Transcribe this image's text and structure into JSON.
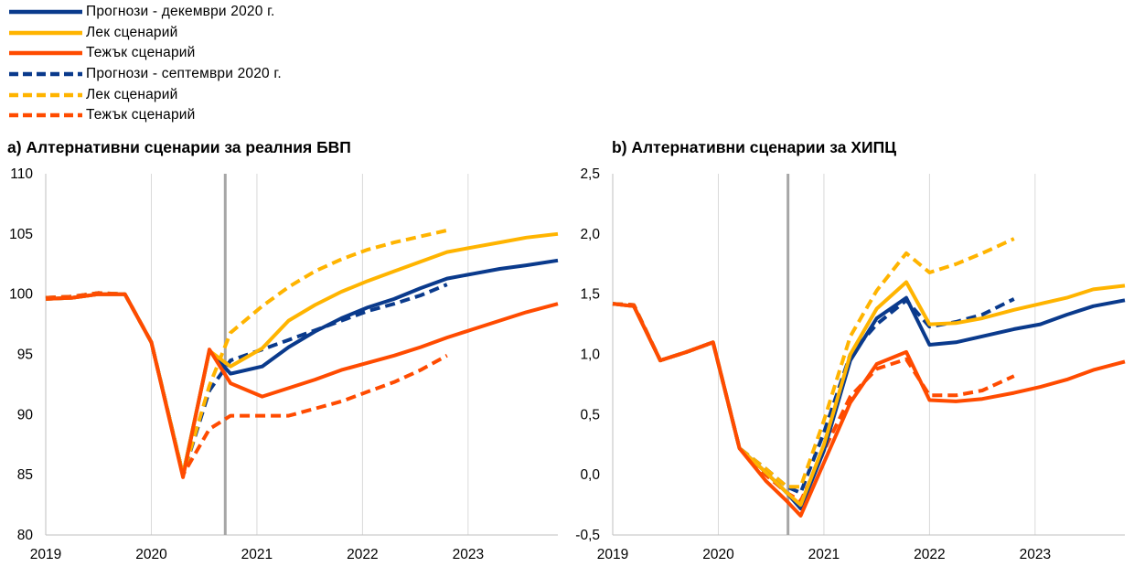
{
  "legend": [
    {
      "label": "Прогнози - декември 2020 г.",
      "color": "#0a3a8c",
      "dashed": false
    },
    {
      "label": "Лек сценарий",
      "color": "#ffb400",
      "dashed": false
    },
    {
      "label": "Тежък сценарий",
      "color": "#ff4b00",
      "dashed": false
    },
    {
      "label": "Прогнози - септември 2020 г.",
      "color": "#0a3a8c",
      "dashed": true
    },
    {
      "label": "Лек сценарий",
      "color": "#ffb400",
      "dashed": true
    },
    {
      "label": "Тежък сценарий",
      "color": "#ff4b00",
      "dashed": true
    }
  ],
  "chart_data": [
    {
      "type": "line",
      "title": "a) Алтернативни сценарии за реалния БВП",
      "xlabel": "",
      "ylabel": "",
      "xlim": [
        2019.0,
        2023.85
      ],
      "ylim": [
        80,
        110
      ],
      "y_ticks": [
        "80",
        "85",
        "90",
        "95",
        "100",
        "105",
        "110"
      ],
      "x_ticks": [
        {
          "value": 2019.0,
          "label": "2019"
        },
        {
          "value": 2020.0,
          "label": "2020"
        },
        {
          "value": 2021.0,
          "label": "2021"
        },
        {
          "value": 2022.0,
          "label": "2022"
        },
        {
          "value": 2023.0,
          "label": "2023"
        }
      ],
      "marker_line": 2020.7,
      "grid": "vertical",
      "series": [
        {
          "name": "Прогнози - декември 2020 г.",
          "color": "#0a3a8c",
          "dashed": false,
          "x": [
            2019.0,
            2019.25,
            2019.5,
            2019.75,
            2020.0,
            2020.3,
            2020.55,
            2020.75,
            2021.05,
            2021.3,
            2021.55,
            2021.8,
            2022.05,
            2022.3,
            2022.55,
            2022.8,
            2023.05,
            2023.3,
            2023.55,
            2023.85
          ],
          "y": [
            99.6,
            99.7,
            100.0,
            100.0,
            96.0,
            85.0,
            95.3,
            93.4,
            94.0,
            95.6,
            96.9,
            98.0,
            98.9,
            99.6,
            100.5,
            101.3,
            101.7,
            102.1,
            102.4,
            102.8
          ]
        },
        {
          "name": "Лек сценарий",
          "color": "#ffb400",
          "dashed": false,
          "x": [
            2019.0,
            2019.25,
            2019.5,
            2019.75,
            2020.0,
            2020.3,
            2020.55,
            2020.75,
            2021.05,
            2021.3,
            2021.55,
            2021.8,
            2022.05,
            2022.3,
            2022.55,
            2022.8,
            2023.05,
            2023.3,
            2023.55,
            2023.85
          ],
          "y": [
            99.6,
            99.7,
            100.0,
            100.0,
            96.0,
            85.0,
            95.3,
            94.0,
            95.5,
            97.8,
            99.1,
            100.2,
            101.1,
            101.9,
            102.7,
            103.5,
            103.9,
            104.3,
            104.7,
            105.0
          ]
        },
        {
          "name": "Тежък сценарий",
          "color": "#ff4b00",
          "dashed": false,
          "x": [
            2019.0,
            2019.25,
            2019.5,
            2019.75,
            2020.0,
            2020.3,
            2020.55,
            2020.75,
            2021.05,
            2021.3,
            2021.55,
            2021.8,
            2022.05,
            2022.3,
            2022.55,
            2022.8,
            2023.05,
            2023.3,
            2023.55,
            2023.85
          ],
          "y": [
            99.6,
            99.7,
            100.0,
            100.0,
            96.0,
            84.8,
            95.4,
            92.6,
            91.5,
            92.2,
            92.9,
            93.7,
            94.3,
            94.9,
            95.6,
            96.4,
            97.1,
            97.8,
            98.5,
            99.2
          ]
        },
        {
          "name": "Прогнози - септември 2020 г.",
          "color": "#0a3a8c",
          "dashed": true,
          "x": [
            2019.0,
            2019.25,
            2019.5,
            2019.75,
            2020.0,
            2020.3,
            2020.55,
            2020.75,
            2021.05,
            2021.3,
            2021.55,
            2021.8,
            2022.05,
            2022.3,
            2022.55,
            2022.8
          ],
          "y": [
            99.7,
            99.8,
            100.1,
            100.0,
            96.0,
            85.0,
            92.0,
            94.5,
            95.4,
            96.2,
            97.0,
            97.8,
            98.6,
            99.2,
            99.9,
            100.8
          ]
        },
        {
          "name": "Лек сценарий",
          "color": "#ffb400",
          "dashed": true,
          "x": [
            2019.0,
            2019.25,
            2019.5,
            2019.75,
            2020.0,
            2020.3,
            2020.55,
            2020.75,
            2021.05,
            2021.3,
            2021.55,
            2021.8,
            2022.05,
            2022.3,
            2022.55,
            2022.8
          ],
          "y": [
            99.7,
            99.8,
            100.1,
            100.0,
            96.0,
            85.0,
            92.4,
            96.8,
            99.0,
            100.6,
            101.9,
            102.9,
            103.7,
            104.3,
            104.8,
            105.3
          ]
        },
        {
          "name": "Тежък сценарий",
          "color": "#ff4b00",
          "dashed": true,
          "x": [
            2019.0,
            2019.25,
            2019.5,
            2019.75,
            2020.0,
            2020.3,
            2020.55,
            2020.75,
            2021.05,
            2021.3,
            2021.55,
            2021.8,
            2022.05,
            2022.3,
            2022.55,
            2022.8
          ],
          "y": [
            99.7,
            99.8,
            100.1,
            100.0,
            96.0,
            85.0,
            88.8,
            89.9,
            89.9,
            89.9,
            90.5,
            91.1,
            91.9,
            92.7,
            93.7,
            94.9
          ]
        }
      ]
    },
    {
      "type": "line",
      "title": "b) Алтернативни сценарии за ХИПЦ",
      "xlabel": "",
      "ylabel": "",
      "xlim": [
        2019.0,
        2023.85
      ],
      "ylim": [
        -0.5,
        2.5
      ],
      "y_ticks": [
        "-0,5",
        "0,0",
        "0,5",
        "1,0",
        "1,5",
        "2,0",
        "2,5"
      ],
      "x_ticks": [
        {
          "value": 2019.0,
          "label": "2019"
        },
        {
          "value": 2020.0,
          "label": "2020"
        },
        {
          "value": 2021.0,
          "label": "2021"
        },
        {
          "value": 2022.0,
          "label": "2022"
        },
        {
          "value": 2023.0,
          "label": "2023"
        }
      ],
      "marker_line": 2020.66,
      "grid": "vertical",
      "series": [
        {
          "name": "Прогнози - декември 2020 г.",
          "color": "#0a3a8c",
          "dashed": false,
          "x": [
            2019.0,
            2019.2,
            2019.45,
            2019.7,
            2019.95,
            2020.2,
            2020.45,
            2020.65,
            2020.78,
            2021.0,
            2021.25,
            2021.5,
            2021.78,
            2022.0,
            2022.25,
            2022.5,
            2022.8,
            2023.05,
            2023.3,
            2023.55,
            2023.85
          ],
          "y": [
            1.42,
            1.4,
            0.95,
            1.02,
            1.1,
            0.22,
            0.02,
            -0.15,
            -0.28,
            0.2,
            0.95,
            1.3,
            1.47,
            1.08,
            1.1,
            1.15,
            1.21,
            1.25,
            1.33,
            1.4,
            1.45
          ]
        },
        {
          "name": "Лек сценарий",
          "color": "#ffb400",
          "dashed": false,
          "x": [
            2019.0,
            2019.2,
            2019.45,
            2019.7,
            2019.95,
            2020.2,
            2020.45,
            2020.65,
            2020.78,
            2021.0,
            2021.25,
            2021.5,
            2021.78,
            2022.0,
            2022.25,
            2022.5,
            2022.8,
            2023.05,
            2023.3,
            2023.55,
            2023.85
          ],
          "y": [
            1.42,
            1.4,
            0.95,
            1.02,
            1.1,
            0.22,
            0.02,
            -0.15,
            -0.25,
            0.25,
            1.0,
            1.38,
            1.6,
            1.25,
            1.26,
            1.3,
            1.37,
            1.42,
            1.47,
            1.54,
            1.57
          ]
        },
        {
          "name": "Тежък сценарий",
          "color": "#ff4b00",
          "dashed": false,
          "x": [
            2019.0,
            2019.2,
            2019.45,
            2019.7,
            2019.95,
            2020.2,
            2020.45,
            2020.65,
            2020.78,
            2021.0,
            2021.25,
            2021.5,
            2021.78,
            2022.0,
            2022.25,
            2022.5,
            2022.8,
            2023.05,
            2023.3,
            2023.55,
            2023.85
          ],
          "y": [
            1.42,
            1.4,
            0.95,
            1.02,
            1.1,
            0.22,
            -0.05,
            -0.22,
            -0.34,
            0.1,
            0.6,
            0.92,
            1.02,
            0.62,
            0.61,
            0.63,
            0.68,
            0.73,
            0.79,
            0.87,
            0.94
          ]
        },
        {
          "name": "Прогнози - септември 2020 г.",
          "color": "#0a3a8c",
          "dashed": true,
          "x": [
            2019.0,
            2019.2,
            2019.45,
            2019.7,
            2019.95,
            2020.2,
            2020.45,
            2020.65,
            2020.78,
            2021.0,
            2021.25,
            2021.5,
            2021.78,
            2022.0,
            2022.25,
            2022.5,
            2022.8
          ],
          "y": [
            1.42,
            1.41,
            0.95,
            1.02,
            1.1,
            0.22,
            0.05,
            -0.1,
            -0.15,
            0.35,
            1.0,
            1.25,
            1.45,
            1.23,
            1.27,
            1.33,
            1.46
          ]
        },
        {
          "name": "Лек сценарий",
          "color": "#ffb400",
          "dashed": true,
          "x": [
            2019.0,
            2019.2,
            2019.45,
            2019.7,
            2019.95,
            2020.2,
            2020.45,
            2020.65,
            2020.78,
            2021.0,
            2021.25,
            2021.5,
            2021.78,
            2022.0,
            2022.25,
            2022.5,
            2022.8
          ],
          "y": [
            1.42,
            1.41,
            0.95,
            1.02,
            1.1,
            0.22,
            0.05,
            -0.1,
            -0.1,
            0.45,
            1.15,
            1.53,
            1.84,
            1.68,
            1.75,
            1.84,
            1.96
          ]
        },
        {
          "name": "Тежък сценарий",
          "color": "#ff4b00",
          "dashed": true,
          "x": [
            2019.0,
            2019.2,
            2019.45,
            2019.7,
            2019.95,
            2020.2,
            2020.45,
            2020.65,
            2020.78,
            2021.0,
            2021.25,
            2021.5,
            2021.78,
            2022.0,
            2022.25,
            2022.5,
            2022.8
          ],
          "y": [
            1.42,
            1.41,
            0.95,
            1.02,
            1.1,
            0.22,
            0.0,
            -0.15,
            -0.22,
            0.2,
            0.65,
            0.88,
            0.96,
            0.66,
            0.66,
            0.7,
            0.82
          ]
        }
      ]
    }
  ]
}
